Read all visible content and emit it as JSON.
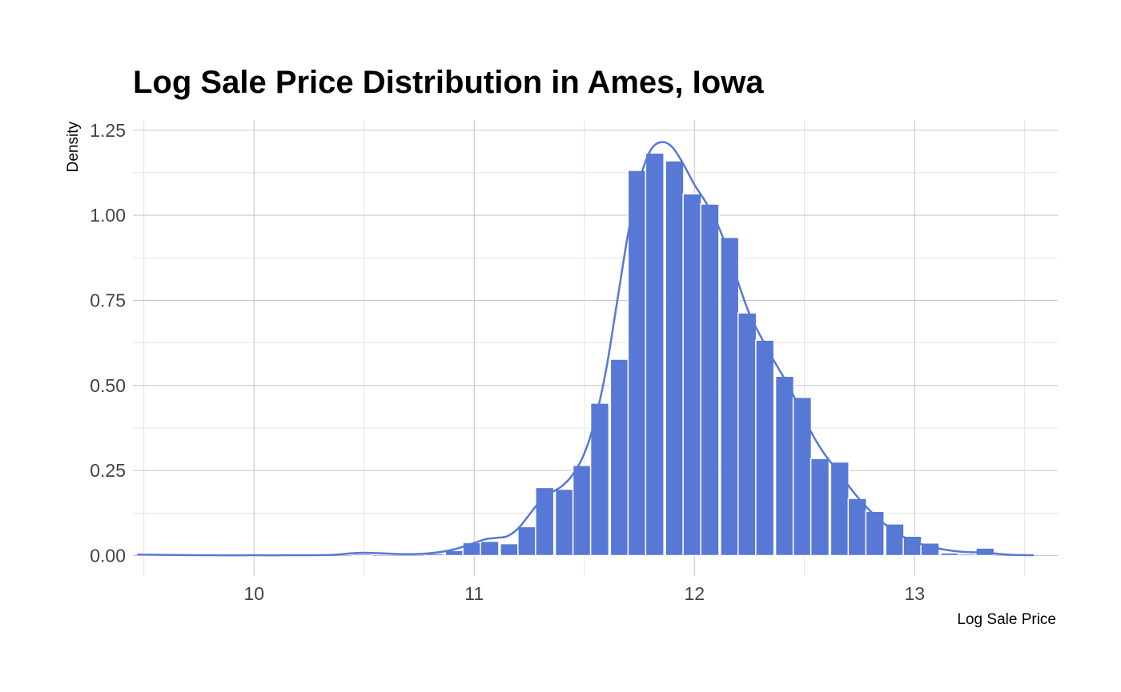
{
  "chart_data": {
    "type": "bar",
    "title": "Log Sale Price Distribution in Ames, Iowa",
    "xlabel": "Log Sale Price",
    "ylabel": "Density",
    "xlim": [
      9.45,
      13.65
    ],
    "ylim": [
      -0.06,
      1.28
    ],
    "x_ticks": [
      {
        "value": 10,
        "label": "10"
      },
      {
        "value": 11,
        "label": "11"
      },
      {
        "value": 12,
        "label": "12"
      },
      {
        "value": 13,
        "label": "13"
      }
    ],
    "y_ticks": [
      {
        "value": 0,
        "label": "0.00"
      },
      {
        "value": 0.25,
        "label": "0.25"
      },
      {
        "value": 0.5,
        "label": "0.50"
      },
      {
        "value": 0.75,
        "label": "0.75"
      },
      {
        "value": 1.0,
        "label": "1.00"
      },
      {
        "value": 1.25,
        "label": "1.25"
      }
    ],
    "grid": true,
    "bar_color": "#5878d6",
    "line_color": "#5878d6",
    "bin_width": 0.083,
    "bins": [
      {
        "x": 9.52,
        "density": 0.002
      },
      {
        "x": 10.49,
        "density": 0.005
      },
      {
        "x": 10.82,
        "density": 0.006
      },
      {
        "x": 10.91,
        "density": 0.015
      },
      {
        "x": 10.99,
        "density": 0.038
      },
      {
        "x": 11.07,
        "density": 0.042
      },
      {
        "x": 11.16,
        "density": 0.035
      },
      {
        "x": 11.24,
        "density": 0.085
      },
      {
        "x": 11.32,
        "density": 0.2
      },
      {
        "x": 11.41,
        "density": 0.195
      },
      {
        "x": 11.49,
        "density": 0.265
      },
      {
        "x": 11.57,
        "density": 0.448
      },
      {
        "x": 11.66,
        "density": 0.577
      },
      {
        "x": 11.74,
        "density": 1.132
      },
      {
        "x": 11.82,
        "density": 1.183
      },
      {
        "x": 11.91,
        "density": 1.16
      },
      {
        "x": 11.99,
        "density": 1.063
      },
      {
        "x": 12.07,
        "density": 1.033
      },
      {
        "x": 12.16,
        "density": 0.935
      },
      {
        "x": 12.24,
        "density": 0.713
      },
      {
        "x": 12.32,
        "density": 0.633
      },
      {
        "x": 12.41,
        "density": 0.527
      },
      {
        "x": 12.49,
        "density": 0.465
      },
      {
        "x": 12.57,
        "density": 0.285
      },
      {
        "x": 12.66,
        "density": 0.275
      },
      {
        "x": 12.74,
        "density": 0.168
      },
      {
        "x": 12.82,
        "density": 0.13
      },
      {
        "x": 12.91,
        "density": 0.093
      },
      {
        "x": 12.99,
        "density": 0.057
      },
      {
        "x": 13.07,
        "density": 0.037
      },
      {
        "x": 13.16,
        "density": 0.008
      },
      {
        "x": 13.24,
        "density": 0.005
      },
      {
        "x": 13.32,
        "density": 0.022
      }
    ],
    "density_curve": [
      [
        9.47,
        0.003
      ],
      [
        9.6,
        0.002
      ],
      [
        9.8,
        0.001
      ],
      [
        10.0,
        0.001
      ],
      [
        10.2,
        0.001
      ],
      [
        10.35,
        0.002
      ],
      [
        10.45,
        0.007
      ],
      [
        10.52,
        0.008
      ],
      [
        10.6,
        0.006
      ],
      [
        10.7,
        0.004
      ],
      [
        10.8,
        0.007
      ],
      [
        10.9,
        0.017
      ],
      [
        11.0,
        0.037
      ],
      [
        11.05,
        0.048
      ],
      [
        11.1,
        0.052
      ],
      [
        11.15,
        0.057
      ],
      [
        11.2,
        0.08
      ],
      [
        11.25,
        0.12
      ],
      [
        11.3,
        0.16
      ],
      [
        11.35,
        0.185
      ],
      [
        11.4,
        0.205
      ],
      [
        11.45,
        0.24
      ],
      [
        11.5,
        0.3
      ],
      [
        11.55,
        0.4
      ],
      [
        11.6,
        0.55
      ],
      [
        11.65,
        0.75
      ],
      [
        11.7,
        0.95
      ],
      [
        11.75,
        1.1
      ],
      [
        11.8,
        1.19
      ],
      [
        11.85,
        1.215
      ],
      [
        11.9,
        1.2
      ],
      [
        11.95,
        1.15
      ],
      [
        12.0,
        1.09
      ],
      [
        12.05,
        1.04
      ],
      [
        12.1,
        0.98
      ],
      [
        12.15,
        0.9
      ],
      [
        12.2,
        0.8
      ],
      [
        12.25,
        0.71
      ],
      [
        12.3,
        0.645
      ],
      [
        12.35,
        0.585
      ],
      [
        12.4,
        0.53
      ],
      [
        12.45,
        0.47
      ],
      [
        12.5,
        0.4
      ],
      [
        12.55,
        0.34
      ],
      [
        12.6,
        0.29
      ],
      [
        12.65,
        0.25
      ],
      [
        12.7,
        0.205
      ],
      [
        12.75,
        0.165
      ],
      [
        12.8,
        0.13
      ],
      [
        12.85,
        0.1
      ],
      [
        12.9,
        0.075
      ],
      [
        12.95,
        0.055
      ],
      [
        13.0,
        0.04
      ],
      [
        13.05,
        0.03
      ],
      [
        13.1,
        0.022
      ],
      [
        13.15,
        0.016
      ],
      [
        13.2,
        0.012
      ],
      [
        13.25,
        0.01
      ],
      [
        13.3,
        0.009
      ],
      [
        13.35,
        0.007
      ],
      [
        13.4,
        0.004
      ],
      [
        13.45,
        0.002
      ],
      [
        13.54,
        0.001
      ]
    ]
  }
}
